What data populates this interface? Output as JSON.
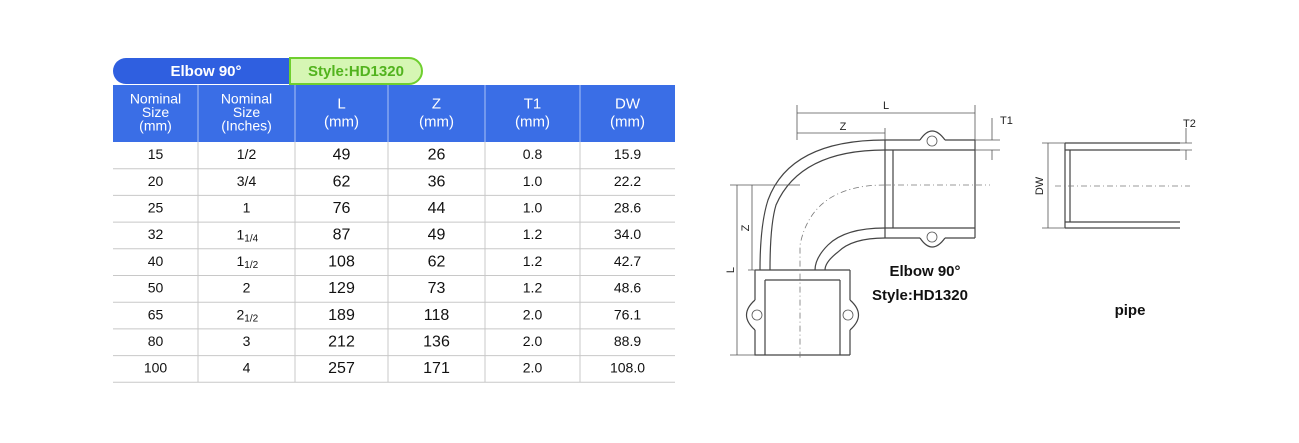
{
  "table": {
    "title": "Elbow 90°",
    "style": "Style:HD1320",
    "header": [
      [
        "Nominal",
        "Size",
        "(mm)"
      ],
      [
        "Nominal",
        "Size",
        "(Inches)"
      ],
      [
        "L",
        "(mm)"
      ],
      [
        "Z",
        "(mm)"
      ],
      [
        "T1",
        "(mm)"
      ],
      [
        "DW",
        "(mm)"
      ]
    ],
    "rows": [
      [
        "15",
        "1/2",
        "49",
        "26",
        "0.8",
        "15.9"
      ],
      [
        "20",
        "3/4",
        "62",
        "36",
        "1.0",
        "22.2"
      ],
      [
        "25",
        "1",
        "76",
        "44",
        "1.0",
        "28.6"
      ],
      [
        "32",
        {
          "whole": "1",
          "fraction": "1/4"
        },
        "87",
        "49",
        "1.2",
        "34.0"
      ],
      [
        "40",
        {
          "whole": "1",
          "fraction": "1/2"
        },
        "108",
        "62",
        "1.2",
        "42.7"
      ],
      [
        "50",
        "2",
        "129",
        "73",
        "1.2",
        "48.6"
      ],
      [
        "65",
        {
          "whole": "2",
          "fraction": "1/2"
        },
        "189",
        "118",
        "2.0",
        "76.1"
      ],
      [
        "80",
        "3",
        "212",
        "136",
        "2.0",
        "88.9"
      ],
      [
        "100",
        "4",
        "257",
        "171",
        "2.0",
        "108.0"
      ]
    ]
  },
  "drawing": {
    "elbow_caption": "Elbow 90°",
    "elbow_style": "Style:HD1320",
    "pipe_caption": "pipe",
    "dimensions": {
      "length_top": "L",
      "z_top": "Z",
      "t1": "T1",
      "length_side": "L",
      "z_side": "Z",
      "dw": "DW",
      "t2": "T2"
    }
  }
}
